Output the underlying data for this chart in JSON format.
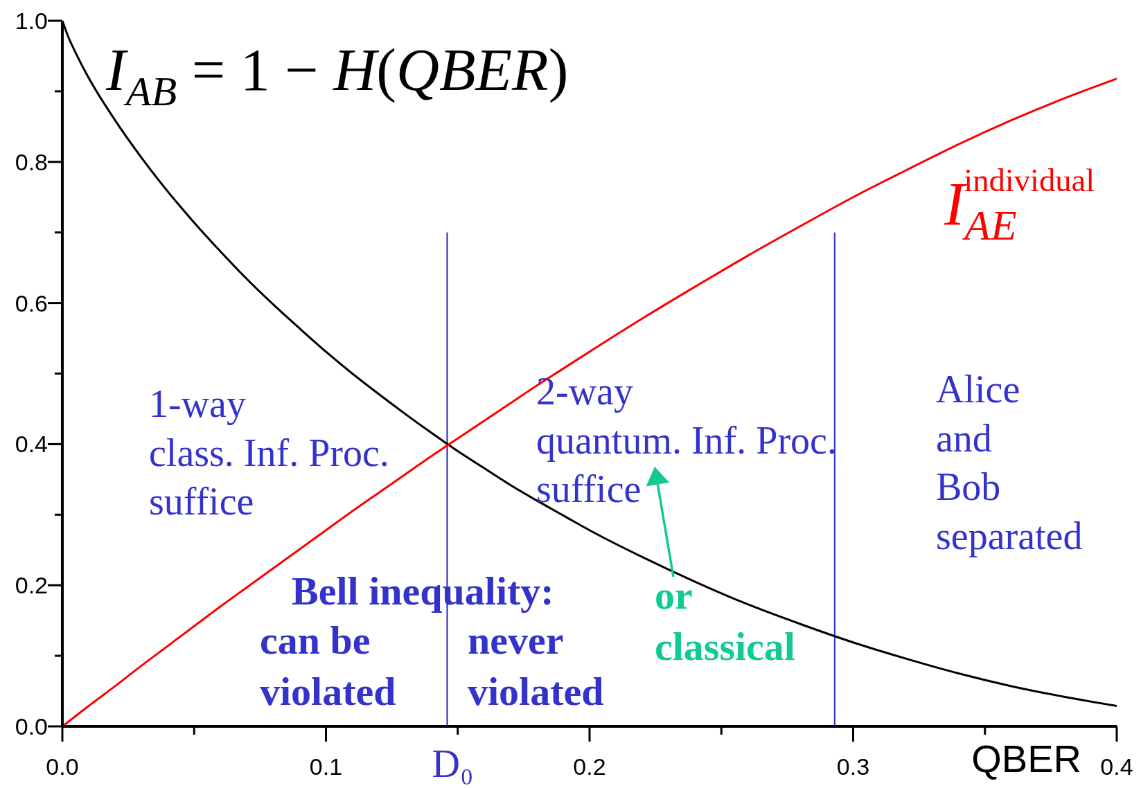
{
  "chart_data": {
    "type": "line",
    "xlabel": "QBER",
    "xlim": [
      0,
      0.4
    ],
    "ylim": [
      0,
      1
    ],
    "xticks": [
      {
        "value": 0,
        "label": "0.0"
      },
      {
        "value": 0.05,
        "label": null
      },
      {
        "value": 0.1,
        "label": "0.1"
      },
      {
        "value": 0.15,
        "label": null
      },
      {
        "value": 0.2,
        "label": "0.2"
      },
      {
        "value": 0.25,
        "label": null
      },
      {
        "value": 0.3,
        "label": "0.3"
      },
      {
        "value": 0.35,
        "label": null
      },
      {
        "value": 0.4,
        "label": "0.4"
      }
    ],
    "yticks": [
      {
        "value": 0,
        "label": "0.0"
      },
      {
        "value": 0.1,
        "label": null
      },
      {
        "value": 0.2,
        "label": "0.2"
      },
      {
        "value": 0.3,
        "label": null
      },
      {
        "value": 0.4,
        "label": "0.4"
      },
      {
        "value": 0.5,
        "label": null
      },
      {
        "value": 0.6,
        "label": "0.6"
      },
      {
        "value": 0.7,
        "label": null
      },
      {
        "value": 0.8,
        "label": "0.8"
      },
      {
        "value": 0.9,
        "label": null
      },
      {
        "value": 1,
        "label": "1.0"
      }
    ],
    "marker": "none",
    "line_style": "solid",
    "series": [
      {
        "name": "I$_{AB}$ = 1 − H(QBER)",
        "color": "#000000",
        "x": [
          0,
          0.0025,
          0.005,
          0.01,
          0.02,
          0.03,
          0.04,
          0.05,
          0.06,
          0.07,
          0.08,
          0.09,
          0.1,
          0.11,
          0.12,
          0.13,
          0.14,
          0.15,
          0.16,
          0.17,
          0.18,
          0.19,
          0.2,
          0.22,
          0.24,
          0.26,
          0.28,
          0.3,
          0.32,
          0.34,
          0.36,
          0.38,
          0.4
        ],
        "values": [
          1,
          0.975,
          0.955,
          0.919,
          0.859,
          0.806,
          0.758,
          0.714,
          0.673,
          0.634,
          0.598,
          0.564,
          0.531,
          0.5,
          0.471,
          0.443,
          0.416,
          0.39,
          0.366,
          0.342,
          0.32,
          0.299,
          0.278,
          0.24,
          0.205,
          0.173,
          0.145,
          0.119,
          0.096,
          0.075,
          0.057,
          0.042,
          0.029
        ]
      },
      {
        "name": "I$_{AE}$$^{individual}$",
        "color": "#ff0000",
        "x": [
          0,
          0.01,
          0.02,
          0.03,
          0.04,
          0.05,
          0.06,
          0.07,
          0.08,
          0.09,
          0.1,
          0.11,
          0.12,
          0.13,
          0.14,
          0.15,
          0.16,
          0.17,
          0.18,
          0.19,
          0.2,
          0.22,
          0.24,
          0.26,
          0.28,
          0.3,
          0.32,
          0.34,
          0.36,
          0.38,
          0.4
        ],
        "values": [
          0,
          0.029,
          0.057,
          0.086,
          0.114,
          0.142,
          0.17,
          0.197,
          0.224,
          0.251,
          0.278,
          0.305,
          0.331,
          0.357,
          0.383,
          0.408,
          0.433,
          0.458,
          0.483,
          0.507,
          0.531,
          0.578,
          0.623,
          0.667,
          0.709,
          0.75,
          0.788,
          0.825,
          0.859,
          0.89,
          0.918
        ]
      }
    ],
    "ref_lines": [
      {
        "axis": "x",
        "value": 0.146,
        "label": "D₀",
        "color": "#3333cc"
      },
      {
        "axis": "x",
        "value": 0.293,
        "color": "#3333cc"
      }
    ],
    "annotations": [
      "1-way\nclass. Inf. Proc.\nsuffice",
      "2-way\nquantum. Inf. Proc.\nsuffice",
      "Alice\nand\nBob\nseparated",
      "Bell inequality:",
      "can be\nviolated",
      "never\nviolated",
      "or\nclassical"
    ]
  }
}
